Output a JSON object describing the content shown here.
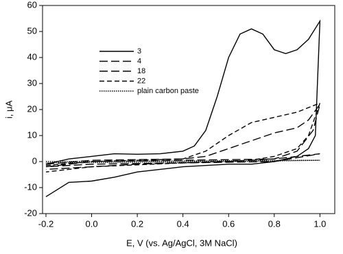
{
  "chart_data": {
    "type": "line",
    "x_label": "E, V (vs. Ag/AgCl, 3M NaCl)",
    "y_label": "i, μA",
    "xlim": [
      -0.215,
      1.065
    ],
    "ylim": [
      -20,
      60
    ],
    "xticks": [
      -0.2,
      {
        "value": 0,
        "label": "0.0"
      },
      0.2,
      0.4,
      0.6,
      0.8,
      {
        "value": 1,
        "label": "1.0"
      }
    ],
    "yticks": [
      -20,
      -10,
      0,
      10,
      20,
      30,
      40,
      50,
      60
    ],
    "legend": "upper left",
    "series": [
      {
        "name": "3",
        "color": "#000000",
        "linestyle": "solid",
        "x": [
          -0.2,
          -0.1,
          0.0,
          0.1,
          0.2,
          0.3,
          0.4,
          0.45,
          0.5,
          0.55,
          0.6,
          0.65,
          0.7,
          0.75,
          0.8,
          0.85,
          0.9,
          0.95,
          1.0,
          0.98,
          0.95,
          0.9,
          0.8,
          0.7,
          0.6,
          0.4,
          0.2,
          0.1,
          0.0,
          -0.1,
          -0.2
        ],
        "values": [
          -1,
          1,
          2,
          3,
          2.8,
          3,
          4,
          6,
          12,
          25,
          40,
          49,
          51,
          49,
          43,
          41.5,
          43,
          47,
          54,
          10,
          5,
          2,
          0,
          -1,
          -1,
          -2,
          -4,
          -6,
          -7.5,
          -8,
          -13.5
        ]
      },
      {
        "name": "4",
        "color": "#000000",
        "linestyle": "long-dash",
        "x": [
          -0.2,
          0.0,
          0.4,
          0.8,
          1.0,
          0.8,
          0.4,
          0.0,
          -0.2
        ],
        "values": [
          -2,
          0,
          0.5,
          1,
          3,
          0,
          -0.5,
          -1,
          -2
        ]
      },
      {
        "name": "18",
        "color": "#000000",
        "linestyle": "long-dash",
        "x": [
          -0.2,
          0.0,
          0.4,
          0.5,
          0.6,
          0.7,
          0.8,
          0.9,
          0.95,
          1.0,
          0.97,
          0.9,
          0.8,
          0.6,
          0.2,
          -0.2
        ],
        "values": [
          -1,
          0.5,
          1,
          2,
          5,
          8,
          11,
          13,
          16,
          22,
          12,
          4,
          1,
          0,
          -1,
          -3
        ]
      },
      {
        "name": "22",
        "color": "#000000",
        "linestyle": "dash",
        "x": [
          -0.2,
          0.0,
          0.4,
          0.5,
          0.6,
          0.7,
          0.8,
          0.9,
          1.0,
          0.95,
          0.9,
          0.8,
          0.7,
          0.4,
          0.0,
          -0.2
        ],
        "values": [
          -1.5,
          0,
          1,
          4,
          10,
          15,
          17,
          19,
          22.5,
          10,
          5,
          2,
          0.5,
          -0.5,
          -2,
          -4
        ]
      },
      {
        "name": "plain carbon paste",
        "color": "#000000",
        "linestyle": "dotted",
        "x": [
          -0.2,
          1.0,
          0.6,
          -0.2
        ],
        "values": [
          0,
          0.5,
          0,
          -0.5
        ]
      }
    ]
  }
}
